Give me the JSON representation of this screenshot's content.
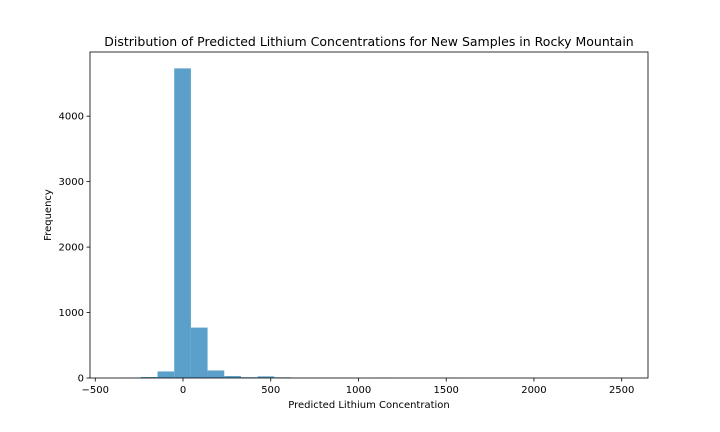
{
  "chart_data": {
    "type": "bar",
    "title": "Distribution of Predicted Lithium Concentrations for New Samples in Rocky Mountain",
    "xlabel": "Predicted Lithium Concentration",
    "ylabel": "Frequency",
    "xlim": [
      -530,
      2650
    ],
    "ylim": [
      0,
      4980
    ],
    "xticks": [
      -500,
      0,
      500,
      1000,
      1500,
      2000,
      2500
    ],
    "yticks": [
      0,
      1000,
      2000,
      3000,
      4000
    ],
    "grid": false,
    "bar_color": "#5b9fcb",
    "bins": [
      {
        "x0": -335,
        "x1": -240,
        "count": 2
      },
      {
        "x0": -240,
        "x1": -145,
        "count": 15
      },
      {
        "x0": -145,
        "x1": -50,
        "count": 100
      },
      {
        "x0": -50,
        "x1": 45,
        "count": 4730
      },
      {
        "x0": 45,
        "x1": 140,
        "count": 770
      },
      {
        "x0": 140,
        "x1": 235,
        "count": 115
      },
      {
        "x0": 235,
        "x1": 330,
        "count": 30
      },
      {
        "x0": 330,
        "x1": 425,
        "count": 12
      },
      {
        "x0": 425,
        "x1": 520,
        "count": 25
      },
      {
        "x0": 520,
        "x1": 615,
        "count": 10
      },
      {
        "x0": 615,
        "x1": 710,
        "count": 3
      },
      {
        "x0": 710,
        "x1": 805,
        "count": 2
      },
      {
        "x0": 805,
        "x1": 900,
        "count": 1
      },
      {
        "x0": 900,
        "x1": 995,
        "count": 1
      },
      {
        "x0": 1090,
        "x1": 1185,
        "count": 1
      },
      {
        "x0": 1470,
        "x1": 1565,
        "count": 1
      },
      {
        "x0": 2420,
        "x1": 2515,
        "count": 1
      }
    ]
  }
}
